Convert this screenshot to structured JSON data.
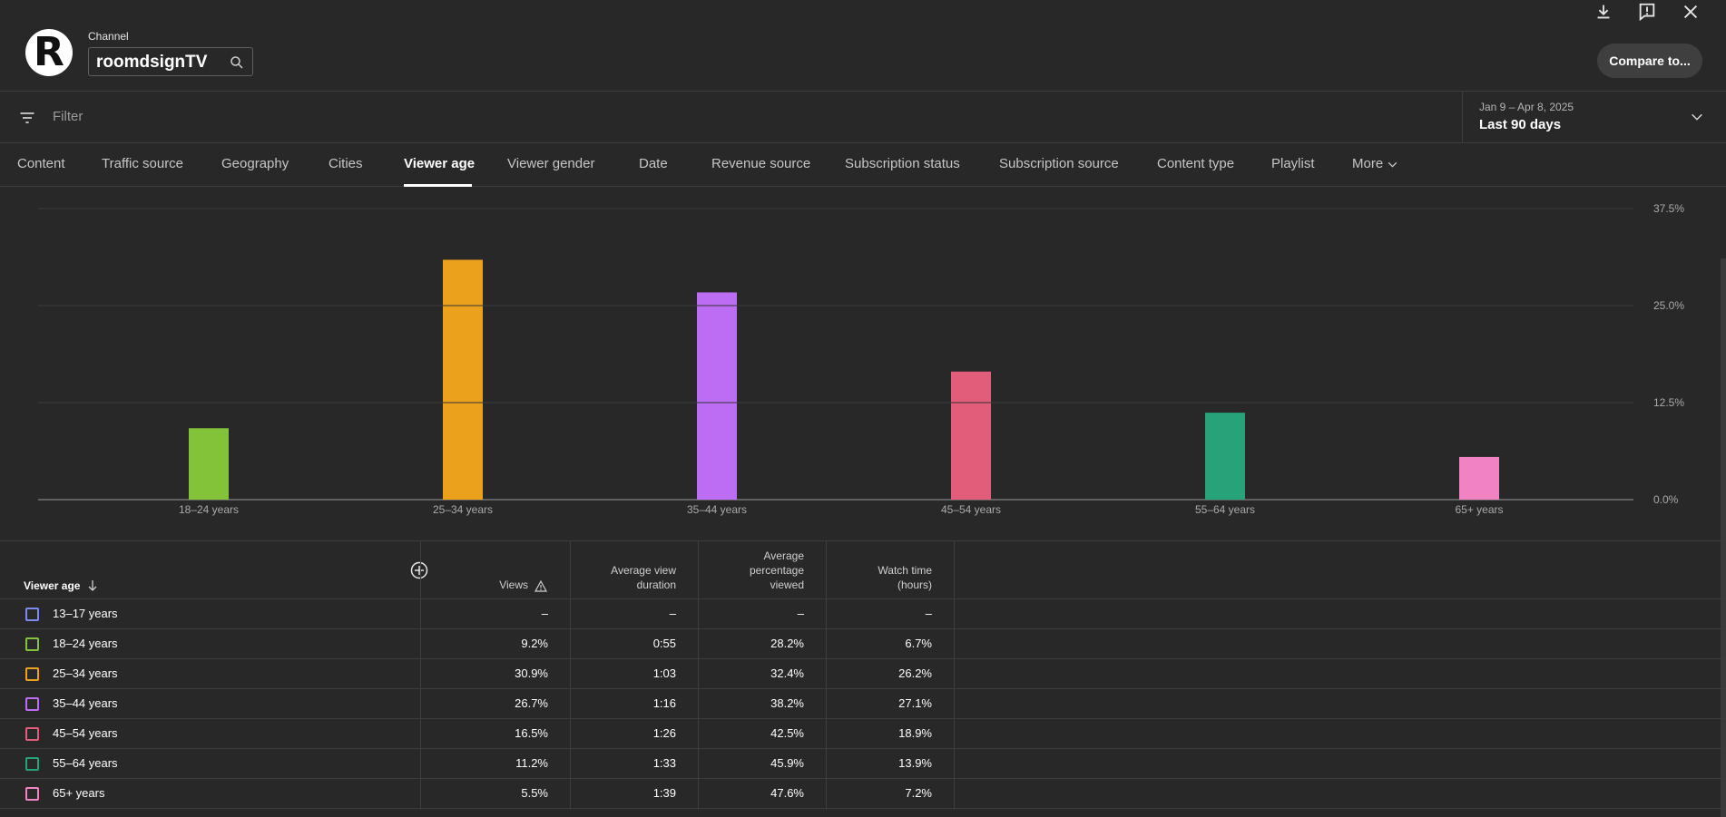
{
  "header": {
    "channel_label": "Channel",
    "channel_name": "roomdsignTV",
    "logo_letter": "R",
    "compare_label": "Compare to..."
  },
  "filter": {
    "placeholder": "Filter",
    "date_range": "Jan 9 – Apr 8, 2025",
    "date_label": "Last 90 days"
  },
  "tabs": [
    {
      "label": "Content"
    },
    {
      "label": "Traffic source"
    },
    {
      "label": "Geography"
    },
    {
      "label": "Cities"
    },
    {
      "label": "Viewer age",
      "active": true
    },
    {
      "label": "Viewer gender"
    },
    {
      "label": "Date"
    },
    {
      "label": "Revenue source"
    },
    {
      "label": "Subscription status"
    },
    {
      "label": "Subscription source"
    },
    {
      "label": "Content type"
    },
    {
      "label": "Playlist"
    },
    {
      "label": "More"
    }
  ],
  "chart_data": {
    "type": "bar",
    "categories": [
      "18–24 years",
      "25–34 years",
      "35–44 years",
      "45–54 years",
      "55–64 years",
      "65+ years"
    ],
    "values": [
      9.2,
      30.9,
      26.7,
      16.5,
      11.2,
      5.5
    ],
    "colors": [
      "#82c33a",
      "#eca11d",
      "#bd6cf4",
      "#e15d7a",
      "#27a37a",
      "#f283c2"
    ],
    "y_ticks": [
      "37.5%",
      "25.0%",
      "12.5%",
      "0.0%"
    ],
    "ylim": [
      0,
      37.5
    ],
    "grid": true
  },
  "table": {
    "header_first": "Viewer age",
    "columns": [
      {
        "lines": [
          "Views"
        ]
      },
      {
        "lines": [
          "Average view",
          "duration"
        ]
      },
      {
        "lines": [
          "Average",
          "percentage",
          "viewed"
        ]
      },
      {
        "lines": [
          "Watch time",
          "(hours)"
        ]
      }
    ],
    "rows": [
      {
        "label": "13–17 years",
        "color": "#7d8af0",
        "cells": [
          "–",
          "–",
          "–",
          "–"
        ]
      },
      {
        "label": "18–24 years",
        "color": "#82c33a",
        "cells": [
          "9.2%",
          "0:55",
          "28.2%",
          "6.7%"
        ]
      },
      {
        "label": "25–34 years",
        "color": "#eca11d",
        "cells": [
          "30.9%",
          "1:03",
          "32.4%",
          "26.2%"
        ]
      },
      {
        "label": "35–44 years",
        "color": "#bd6cf4",
        "cells": [
          "26.7%",
          "1:16",
          "38.2%",
          "27.1%"
        ]
      },
      {
        "label": "45–54 years",
        "color": "#e15d7a",
        "cells": [
          "16.5%",
          "1:26",
          "42.5%",
          "18.9%"
        ]
      },
      {
        "label": "55–64 years",
        "color": "#27a37a",
        "cells": [
          "11.2%",
          "1:33",
          "45.9%",
          "13.9%"
        ]
      },
      {
        "label": "65+ years",
        "color": "#f283c2",
        "cells": [
          "5.5%",
          "1:39",
          "47.6%",
          "7.2%"
        ]
      }
    ]
  }
}
